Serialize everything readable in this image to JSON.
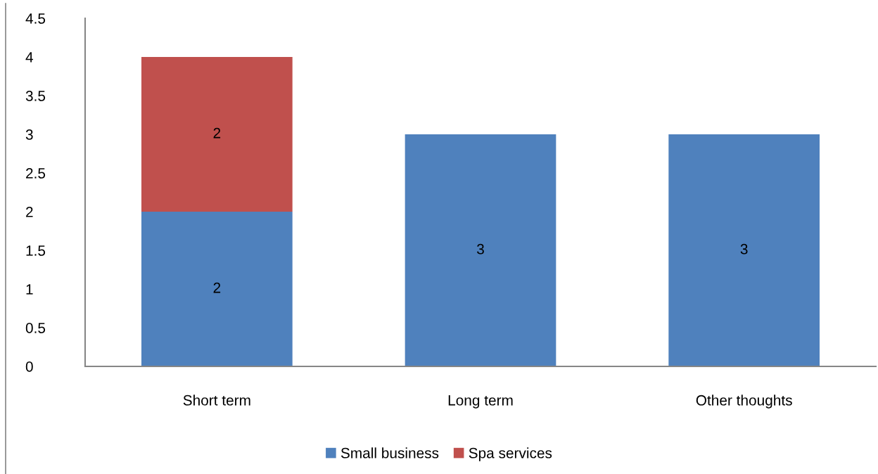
{
  "chart_data": {
    "type": "bar",
    "stacked": true,
    "categories": [
      "Short term",
      "Long term",
      "Other thoughts"
    ],
    "series": [
      {
        "name": "Small business",
        "color": "#4f81bd",
        "values": [
          2,
          3,
          3
        ]
      },
      {
        "name": "Spa services",
        "color": "#c0504d",
        "values": [
          2,
          null,
          null
        ]
      }
    ],
    "ylim": [
      0,
      4.5
    ],
    "yticks": [
      0,
      0.5,
      1,
      1.5,
      2,
      2.5,
      3,
      3.5,
      4,
      4.5
    ],
    "grid": false,
    "legend": "bottom",
    "data_labels": true
  }
}
